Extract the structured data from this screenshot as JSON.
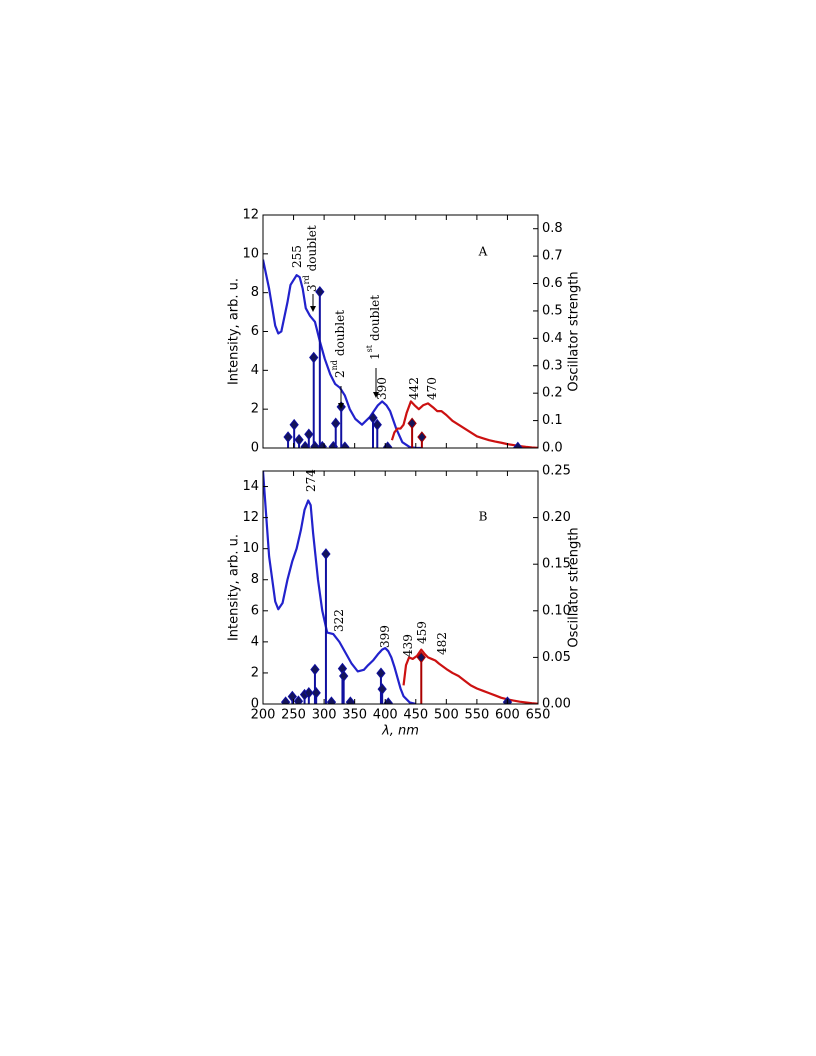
{
  "chart_data": [
    {
      "type": "line",
      "label": "A",
      "ylabel": "Intensity, arb. u.",
      "y2label": "Oscillator strength",
      "xlim": [
        200,
        650
      ],
      "xticks": [
        200,
        250,
        300,
        350,
        400,
        450,
        500,
        550,
        600,
        650
      ],
      "ylim": [
        0,
        12
      ],
      "yticks": [
        0,
        2,
        4,
        6,
        8,
        10,
        12
      ],
      "y2lim": [
        0,
        0.85
      ],
      "y2ticks": [
        {
          "value": 0,
          "label": "0.0"
        },
        0.1,
        0.2,
        0.3,
        0.4,
        0.5,
        0.6,
        0.7,
        0.8
      ],
      "series": [
        {
          "style": "line",
          "color": "#2222cc",
          "x": [
            200,
            210,
            220,
            225,
            230,
            240,
            245,
            255,
            260,
            265,
            270,
            277,
            285,
            293,
            301,
            310,
            318,
            326,
            334,
            342,
            351,
            362,
            375,
            388,
            395,
            402,
            408,
            418,
            428,
            440,
            450,
            460
          ],
          "values": [
            9.7,
            8.2,
            6.3,
            5.9,
            6.0,
            7.5,
            8.4,
            8.9,
            8.8,
            8.2,
            7.2,
            6.8,
            6.5,
            5.5,
            4.6,
            3.8,
            3.3,
            3.1,
            2.7,
            2.0,
            1.5,
            1.2,
            1.6,
            2.2,
            2.4,
            2.2,
            1.9,
            1.0,
            0.3,
            0.05,
            0.01,
            0
          ]
        },
        {
          "style": "line",
          "color": "#cc1111",
          "x": [
            411,
            415,
            420,
            425,
            430,
            435,
            442,
            448,
            455,
            462,
            470,
            478,
            485,
            492,
            500,
            510,
            520,
            530,
            540,
            550,
            560,
            570,
            580,
            590,
            600,
            610,
            620,
            630,
            640,
            650
          ],
          "values": [
            0.4,
            0.8,
            1.0,
            1.0,
            1.2,
            1.8,
            2.4,
            2.2,
            2.0,
            2.2,
            2.3,
            2.1,
            1.9,
            1.9,
            1.7,
            1.4,
            1.2,
            1.0,
            0.8,
            0.6,
            0.5,
            0.4,
            0.33,
            0.27,
            0.2,
            0.15,
            0.1,
            0.06,
            0.03,
            0.01
          ]
        },
        {
          "style": "stem",
          "axis": "y2",
          "color": "#1010a0",
          "x": [
            241,
            251,
            259,
            269,
            275,
            283,
            285,
            293,
            297,
            315,
            319,
            328,
            334,
            380,
            387,
            404,
            617
          ],
          "values": [
            0.04,
            0.085,
            0.03,
            0.005,
            0.05,
            0.33,
            0.005,
            0.57,
            0.005,
            0.005,
            0.09,
            0.15,
            0.003,
            0.11,
            0.085,
            0.003,
            0.002
          ]
        },
        {
          "style": "stem",
          "axis": "y2",
          "color": "#aa0000",
          "x": [
            444,
            460
          ],
          "values": [
            0.09,
            0.04
          ]
        }
      ],
      "annotations": [
        {
          "text": "255"
        },
        {
          "base": "3",
          "sup": "rd",
          "text": "doublet"
        },
        {
          "base": "2",
          "sup": "nd",
          "text": "doublet"
        },
        {
          "base": "1",
          "sup": "st",
          "text": "doublet"
        },
        {
          "text": "390"
        },
        {
          "text": "442"
        },
        {
          "text": "470"
        }
      ]
    },
    {
      "type": "line",
      "label": "B",
      "ylabel": "Intensity, arb. u.",
      "y2label": "Oscillator strength",
      "xlabel": "λ, nm",
      "xlim": [
        200,
        650
      ],
      "xticks": [
        200,
        250,
        300,
        350,
        400,
        450,
        500,
        550,
        600,
        650
      ],
      "ylim": [
        0,
        15
      ],
      "yticks": [
        0,
        2,
        4,
        6,
        8,
        10,
        12,
        14
      ],
      "y2lim": [
        0,
        0.25
      ],
      "y2ticks": [
        {
          "value": 0,
          "label": "0.00"
        },
        0.05,
        {
          "value": 0.1,
          "label": "0.10"
        },
        0.15,
        {
          "value": 0.2,
          "label": "0.20"
        },
        0.25
      ],
      "series": [
        {
          "style": "line",
          "color": "#2222cc",
          "x": [
            200,
            210,
            220,
            225,
            232,
            240,
            248,
            255,
            262,
            268,
            274,
            278,
            282,
            286,
            290,
            297,
            305,
            315,
            325,
            335,
            345,
            355,
            365,
            372,
            380,
            388,
            395,
            400,
            405,
            410,
            415,
            420,
            425,
            430,
            440,
            450
          ],
          "values": [
            15,
            9.5,
            6.6,
            6.1,
            6.5,
            8.0,
            9.2,
            10.0,
            11.2,
            12.5,
            13.1,
            12.8,
            11.0,
            9.5,
            8.0,
            6.0,
            4.6,
            4.5,
            4.0,
            3.3,
            2.6,
            2.1,
            2.2,
            2.5,
            2.8,
            3.2,
            3.5,
            3.6,
            3.4,
            3.0,
            2.4,
            1.7,
            1.0,
            0.5,
            0.1,
            0
          ]
        },
        {
          "style": "line",
          "color": "#cc1111",
          "x": [
            430,
            434,
            439,
            445,
            452,
            459,
            465,
            470,
            476,
            482,
            488,
            495,
            502,
            510,
            520,
            530,
            540,
            550,
            560,
            570,
            580,
            590,
            600,
            610,
            620,
            630,
            640,
            650
          ],
          "values": [
            1.2,
            2.5,
            3.0,
            2.9,
            3.1,
            3.5,
            3.2,
            3.0,
            2.9,
            2.8,
            2.6,
            2.4,
            2.2,
            2.0,
            1.8,
            1.5,
            1.2,
            1.0,
            0.85,
            0.7,
            0.55,
            0.4,
            0.3,
            0.22,
            0.15,
            0.1,
            0.05,
            0.02
          ]
        },
        {
          "style": "stem",
          "axis": "y2",
          "color": "#1010a0",
          "x": [
            237,
            248,
            258,
            268,
            275,
            285,
            287,
            303,
            312,
            330,
            332,
            343,
            393,
            395,
            405,
            600
          ],
          "values": [
            0.002,
            0.008,
            0.003,
            0.01,
            0.012,
            0.037,
            0.012,
            0.161,
            0.002,
            0.038,
            0.03,
            0.002,
            0.033,
            0.016,
            0.001,
            0.002
          ]
        },
        {
          "style": "stem",
          "axis": "y2",
          "color": "#aa0000",
          "x": [
            459
          ],
          "values": [
            0.05
          ]
        }
      ],
      "annotations": [
        {
          "text": "274"
        },
        {
          "text": "322"
        },
        {
          "text": "399"
        },
        {
          "text": "439"
        },
        {
          "text": "459"
        },
        {
          "text": "482"
        }
      ]
    }
  ]
}
